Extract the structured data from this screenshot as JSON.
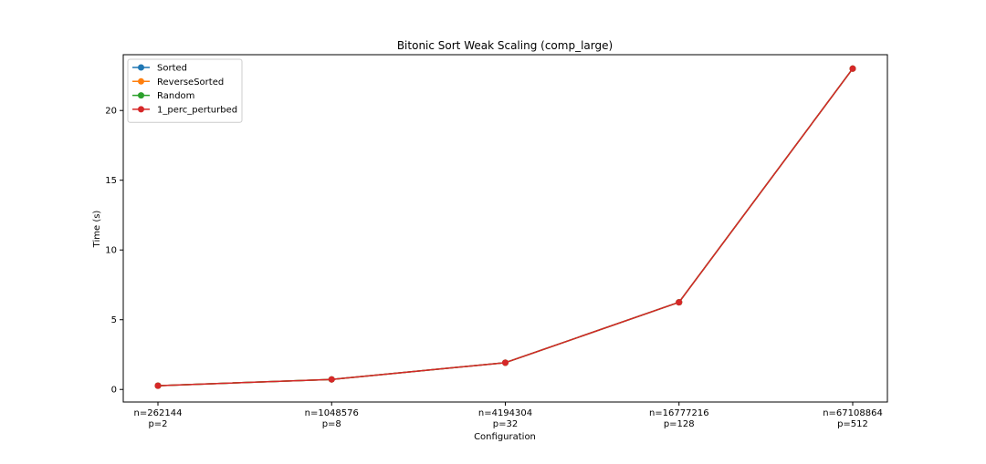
{
  "chart_data": {
    "type": "line",
    "title": "Bitonic Sort Weak Scaling (comp_large)",
    "xlabel": "Configuration",
    "ylabel": "Time (s)",
    "categories": [
      [
        "n=262144",
        "p=2"
      ],
      [
        "n=1048576",
        "p=8"
      ],
      [
        "n=4194304",
        "p=32"
      ],
      [
        "n=16777216",
        "p=128"
      ],
      [
        "n=67108864",
        "p=512"
      ]
    ],
    "ylim": [
      -0.9,
      24.0
    ],
    "yticks": [
      0,
      5,
      10,
      15,
      20
    ],
    "grid": false,
    "legend_position": "top-left",
    "series": [
      {
        "name": "Sorted",
        "color": "#1f77b4",
        "values": [
          0.27,
          0.72,
          1.92,
          6.25,
          23.0
        ]
      },
      {
        "name": "ReverseSorted",
        "color": "#ff7f0e",
        "values": [
          0.27,
          0.72,
          1.92,
          6.25,
          23.0
        ]
      },
      {
        "name": "Random",
        "color": "#2ca02c",
        "values": [
          0.27,
          0.72,
          1.92,
          6.25,
          23.0
        ]
      },
      {
        "name": "1_perc_perturbed",
        "color": "#d62728",
        "values": [
          0.27,
          0.72,
          1.92,
          6.25,
          23.0
        ]
      }
    ]
  }
}
